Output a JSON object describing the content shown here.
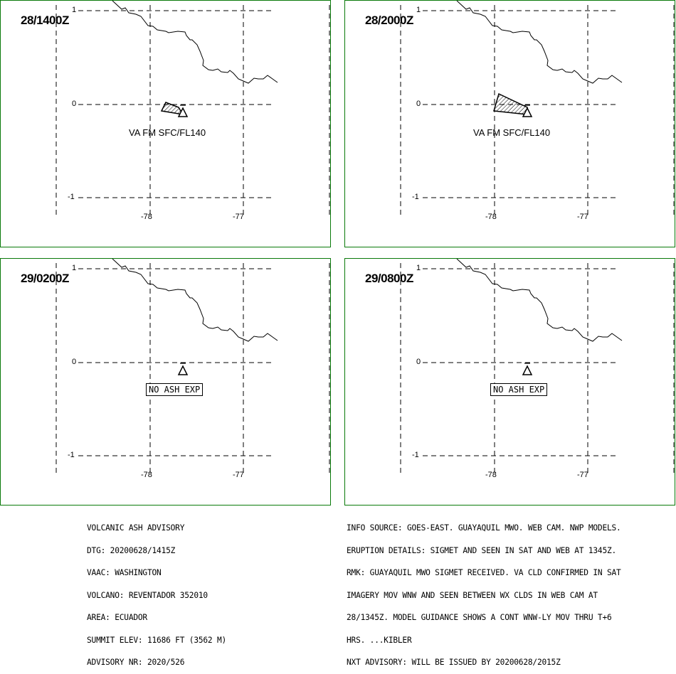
{
  "panels": [
    {
      "time": "28/1400Z",
      "ash_text": "VA FM SFC/FL140",
      "no_ash_text": "",
      "ash": "small"
    },
    {
      "time": "28/2000Z",
      "ash_text": "VA FM SFC/FL140",
      "no_ash_text": "",
      "ash": "large"
    },
    {
      "time": "29/0200Z",
      "ash_text": "",
      "no_ash_text": "NO ASH EXP",
      "ash": "none"
    },
    {
      "time": "29/0800Z",
      "ash_text": "",
      "no_ash_text": "NO ASH EXP",
      "ash": "none"
    }
  ],
  "axes": {
    "lat_labels": [
      "1",
      "0",
      "-1"
    ],
    "lon_labels": [
      "-78",
      "-77"
    ]
  },
  "colors": {
    "border": "#0a7a0a",
    "lines": "#000000"
  },
  "icons": {
    "volcano": "volcano-triangle-icon"
  },
  "advisory_left": [
    "VOLCANIC ASH ADVISORY",
    "DTG: 20200628/1415Z",
    "VAAC: WASHINGTON",
    "VOLCANO: REVENTADOR 352010",
    "AREA: ECUADOR",
    "SUMMIT ELEV: 11686 FT (3562 M)",
    "ADVISORY NR: 2020/526"
  ],
  "advisory_right": [
    "INFO SOURCE: GOES-EAST. GUAYAQUIL MWO. WEB CAM. NWP MODELS.",
    "ERUPTION DETAILS: SIGMET AND SEEN IN SAT AND WEB AT 1345Z.",
    "RMK: GUAYAQUIL MWO SIGMET RECEIVED. VA CLD CONFIRMED IN SAT",
    "IMAGERY MOV WNW AND SEEN BETWEEN WX CLDS IN WEB CAM AT",
    "28/1345Z. MODEL GUIDANCE SHOWS A CONT WNW-LY MOV THRU T+6",
    "HRS. ...KIBLER",
    "NXT ADVISORY: WILL BE ISSUED BY 20200628/2015Z"
  ]
}
